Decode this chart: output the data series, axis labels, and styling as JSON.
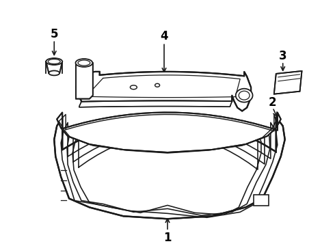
{
  "background_color": "#ffffff",
  "line_color": "#1a1a1a",
  "label_color": "#000000",
  "figsize": [
    4.9,
    3.6
  ],
  "dpi": 100,
  "lw": 1.3
}
